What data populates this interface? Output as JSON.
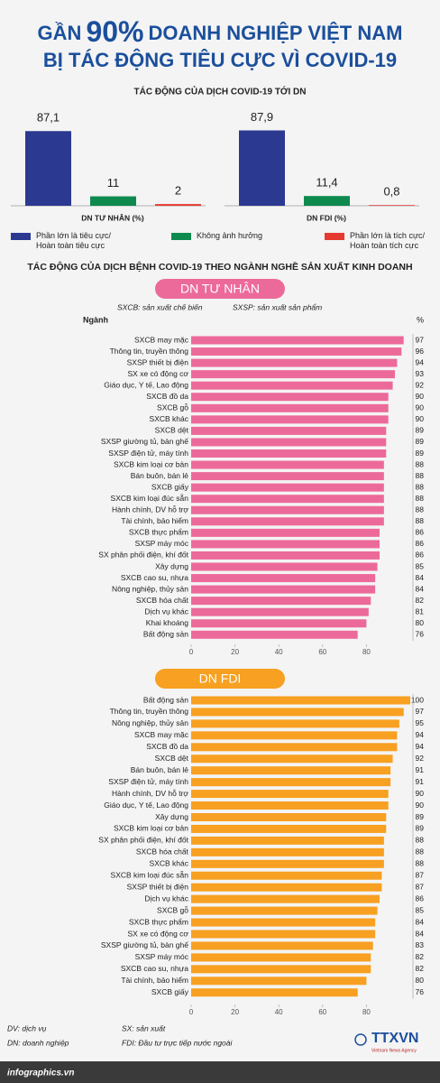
{
  "header": {
    "pre": "GẦN",
    "highlight": "90%",
    "post": "DOANH NGHIỆP VIỆT NAM",
    "line2": "BỊ TÁC ĐỘNG TIÊU CỰC VÌ COVID-19"
  },
  "section_title": "TÁC ĐỘNG CỦA DỊCH BỆNH COVID-19 THEO NGÀNH NGHỀ SẢN XUẤT KINH DOANH",
  "chart_data": [
    {
      "type": "bar",
      "title": "TÁC ĐỘNG CỦA DỊCH COVID-19 TỚI DN",
      "categories": [
        "Phần lớn là tiêu cực/\nHoàn toàn tiêu cực",
        "Không ảnh hưởng",
        "Phần lớn là tích cực/\nHoàn toàn tích cực"
      ],
      "colors": [
        "#2b3990",
        "#0f8a4f",
        "#e53a2f"
      ],
      "series": [
        {
          "name": "DN TƯ NHÂN (%)",
          "values": [
            87.1,
            11,
            2
          ],
          "value_labels": [
            "87,1",
            "11",
            "2"
          ]
        },
        {
          "name": "DN FDI (%)",
          "values": [
            87.9,
            11.4,
            0.8
          ],
          "value_labels": [
            "87,9",
            "11,4",
            "0,8"
          ]
        }
      ]
    },
    {
      "type": "barh",
      "title": "DN TƯ NHÂN",
      "notes": [
        "SXCB: sản xuất chế biến",
        "SXSP: sản xuất sản phẩm"
      ],
      "category_label": "Ngành",
      "value_label": "%",
      "color": "#ec6a9a",
      "categories": [
        "SXCB may mặc",
        "Thông tin, truyền thông",
        "SXSP thiết bị điện",
        "SX xe có động cơ",
        "Giáo dục, Y tế, Lao động",
        "SXCB đồ da",
        "SXCB gỗ",
        "SXCB khác",
        "SXCB dệt",
        "SXSP giường tủ, bàn ghế",
        "SXSP điện tử, máy tính",
        "SXCB kim loại cơ bản",
        "Bán buôn, bán lẻ",
        "SXCB giấy",
        "SXCB kim loại đúc sẵn",
        "Hành chính, DV hỗ trợ",
        "Tài chính, bảo hiểm",
        "SXCB thực phẩm",
        "SXSP máy móc",
        "SX phân phối điện, khí đốt",
        "Xây dựng",
        "SXCB cao su, nhựa",
        "Nông nghiệp, thủy sản",
        "SXCB hóa chất",
        "Dịch vụ khác",
        "Khai khoáng",
        "Bất động sản"
      ],
      "values": [
        97,
        96,
        94,
        93,
        92,
        90,
        90,
        90,
        89,
        89,
        89,
        88,
        88,
        88,
        88,
        88,
        88,
        86,
        86,
        86,
        85,
        84,
        84,
        82,
        81,
        80,
        76
      ],
      "xlim": [
        0,
        100
      ],
      "xticks": [
        0,
        20,
        40,
        60,
        80
      ]
    },
    {
      "type": "barh",
      "title": "DN FDI",
      "color": "#f7a021",
      "categories": [
        "Bất động sản",
        "Thông tin, truyền thông",
        "Nông nghiệp, thủy sản",
        "SXCB may mặc",
        "SXCB đồ da",
        "SXCB dệt",
        "Bán buôn, bán lẻ",
        "SXSP điện tử, máy tính",
        "Hành chính, DV hỗ trợ",
        "Giáo dục, Y tế, Lao động",
        "Xây dựng",
        "SXCB kim loại cơ bản",
        "SX phân phối điện, khí đốt",
        "SXCB hóa chất",
        "SXCB khác",
        "SXCB kim loại đúc sẵn",
        "SXSP thiết bị điện",
        "Dịch vụ khác",
        "SXCB gỗ",
        "SXCB thực phẩm",
        "SX xe có động cơ",
        "SXSP giường tủ, bàn ghế",
        "SXSP máy móc",
        "SXCB cao su, nhựa",
        "Tài chính, bảo hiểm",
        "SXCB giấy"
      ],
      "values": [
        100,
        97,
        95,
        94,
        94,
        92,
        91,
        91,
        90,
        90,
        89,
        89,
        88,
        88,
        88,
        87,
        87,
        86,
        85,
        84,
        84,
        83,
        82,
        82,
        80,
        76
      ],
      "xlim": [
        0,
        100
      ],
      "xticks": [
        0,
        20,
        40,
        60,
        80
      ]
    }
  ],
  "footer": {
    "notes": [
      "DV: dịch vụ",
      "DN: doanh nghiệp",
      "SX: sản xuất",
      "FDI: Đầu tư trực tiếp nước ngoài"
    ],
    "logo": "TTXVN",
    "agency": "Vietnam News Agency",
    "site": "infographics.vn"
  }
}
